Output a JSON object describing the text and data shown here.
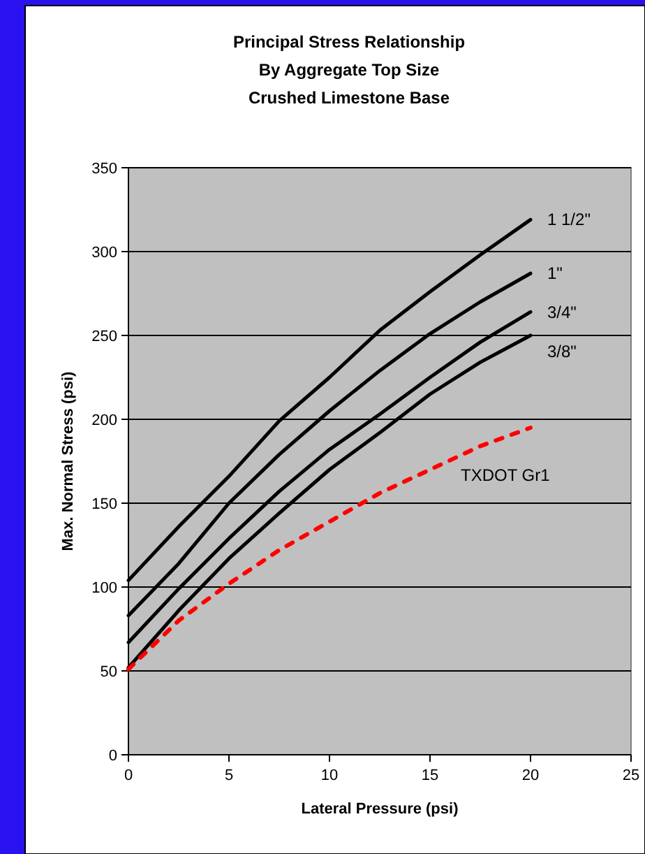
{
  "chart_data": {
    "type": "line",
    "title": "Principal Stress Relationship\nBy Aggregate Top Size\nCrushed Limestone Base",
    "xlabel": "Lateral Pressure (psi)",
    "ylabel": "Max. Normal Stress (psi)",
    "x": [
      0,
      2.5,
      5,
      7.5,
      10,
      12.5,
      15,
      17.5,
      20
    ],
    "series": [
      {
        "name": "1 1/2\"",
        "color": "#000000",
        "values": [
          104,
          136,
          166,
          199,
          225,
          253,
          276,
          298,
          319
        ]
      },
      {
        "name": "1\"",
        "color": "#000000",
        "values": [
          83,
          114,
          150,
          179,
          205,
          229,
          251,
          270,
          287
        ]
      },
      {
        "name": "3/4\"",
        "color": "#000000",
        "values": [
          67,
          99,
          129,
          157,
          182,
          203,
          225,
          246,
          264
        ]
      },
      {
        "name": "3/8\"",
        "color": "#000000",
        "values": [
          52,
          86,
          117,
          144,
          170,
          192,
          215,
          234,
          250
        ]
      },
      {
        "name": "TXDOT Gr1",
        "color": "#ff0000",
        "line_style": "dashed",
        "values": [
          51,
          80,
          102,
          122,
          139,
          156,
          170,
          184,
          195
        ]
      }
    ],
    "xlim": [
      0,
      25
    ],
    "xticks": [
      0,
      5,
      10,
      15,
      20,
      25
    ],
    "ylim": [
      0,
      350
    ],
    "yticks": [
      0,
      50,
      100,
      150,
      200,
      250,
      300,
      350
    ],
    "grid": "y",
    "marker": "none",
    "line_style": "solid"
  }
}
